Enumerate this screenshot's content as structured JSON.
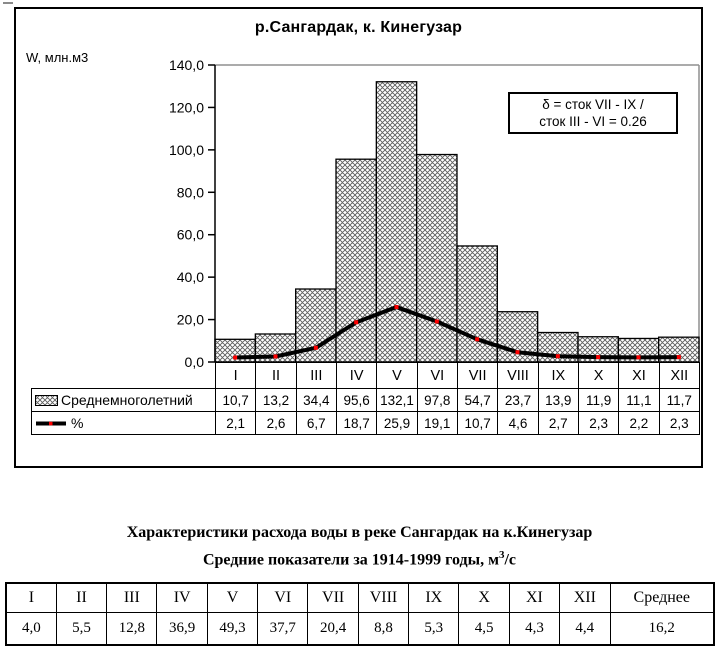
{
  "chart": {
    "title": "р.Сангардак, к. Кинегузар",
    "y_axis_label": "W, млн.м3",
    "y_ticks": [
      "140,0",
      "120,0",
      "100,0",
      "80,0",
      "60,0",
      "40,0",
      "20,0",
      "0,0"
    ],
    "annotation": {
      "line1": "δ = сток VII - IX /",
      "line2": "сток III - VI = 0.26"
    },
    "bar_values_display": [
      "10,7",
      "13,2",
      "34,4",
      "95,6",
      "132,1",
      "97,8",
      "54,7",
      "23,7",
      "13,9",
      "11,9",
      "11,1",
      "11,7"
    ],
    "line_values_display": [
      "2,1",
      "2,6",
      "6,7",
      "18,7",
      "25,9",
      "19,1",
      "10,7",
      "4,6",
      "2,7",
      "2,3",
      "2,2",
      "2,3"
    ]
  },
  "chart_data": {
    "type": "bar",
    "title": "р.Сангардак, к. Кинегузар",
    "ylabel": "W, млн.м3",
    "ylim": [
      0,
      140
    ],
    "y_tick_step": 20,
    "grid": false,
    "legend_position": "bottom-attached-table",
    "categories": [
      "I",
      "II",
      "III",
      "IV",
      "V",
      "VI",
      "VII",
      "VIII",
      "IX",
      "X",
      "XI",
      "XII"
    ],
    "series": [
      {
        "name": "Среднемноголетний",
        "type": "bar",
        "fill": "crosshatch",
        "values": [
          10.7,
          13.2,
          34.4,
          95.6,
          132.1,
          97.8,
          54.7,
          23.7,
          13.9,
          11.9,
          11.1,
          11.7
        ]
      },
      {
        "name": "%",
        "type": "line",
        "color": "#000000",
        "marker": "square",
        "marker_color": "#ff0000",
        "values": [
          2.1,
          2.6,
          6.7,
          18.7,
          25.9,
          19.1,
          10.7,
          4.6,
          2.7,
          2.3,
          2.2,
          2.3
        ]
      }
    ],
    "annotation": "δ = сток VII - IX / сток III - VI = 0.26"
  },
  "summary": {
    "title_line1": "Характеристики расхода воды в реке Сангардак на к.Кинегузар",
    "title_line2_prefix": "Средние показатели за 1914-1999 годы, м",
    "title_line2_sup": "3",
    "title_line2_suffix": "/с",
    "table": {
      "headers": [
        "I",
        "II",
        "III",
        "IV",
        "V",
        "VI",
        "VII",
        "VIII",
        "IX",
        "X",
        "XI",
        "XII",
        "Среднее"
      ],
      "values": [
        "4,0",
        "5,5",
        "12,8",
        "36,9",
        "49,3",
        "37,7",
        "20,4",
        "8,8",
        "5,3",
        "4,5",
        "4,3",
        "4,4",
        "16,2"
      ]
    }
  }
}
